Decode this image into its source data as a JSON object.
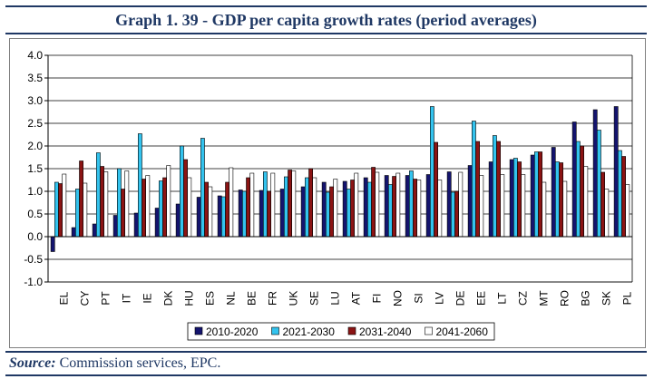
{
  "title": "Graph 1. 39 - GDP per capita growth rates (period averages)",
  "source": {
    "label": "Source:",
    "text": "Commission services, EPC."
  },
  "colors": {
    "2010-2020": "#14146e",
    "2021-2030": "#33c3ee",
    "2031-2040": "#8b1414",
    "2041-2060": "#ffffff"
  },
  "chart_data": {
    "type": "bar",
    "title": "",
    "xlabel": "",
    "ylabel": "",
    "ylim": [
      -1.0,
      4.0
    ],
    "yticks": [
      "4.0",
      "3.5",
      "3.0",
      "2.5",
      "2.0",
      "1.5",
      "1.0",
      "0.5",
      "0.0",
      "-0.5",
      "-1.0"
    ],
    "grid": true,
    "legend_position": "bottom",
    "categories": [
      "EL",
      "CY",
      "PT",
      "IT",
      "IE",
      "DK",
      "HU",
      "ES",
      "NL",
      "BE",
      "FR",
      "UK",
      "SE",
      "LU",
      "AT",
      "FI",
      "NO",
      "SI",
      "LV",
      "DE",
      "EE",
      "LT",
      "CZ",
      "MT",
      "RO",
      "BG",
      "SK",
      "PL"
    ],
    "series": [
      {
        "name": "2010-2020",
        "values": [
          -0.33,
          0.2,
          0.28,
          0.47,
          0.52,
          0.63,
          0.72,
          0.87,
          0.9,
          1.03,
          1.02,
          1.05,
          1.1,
          1.2,
          1.22,
          1.3,
          1.35,
          1.35,
          1.37,
          1.43,
          1.57,
          1.65,
          1.7,
          1.8,
          1.97,
          2.53,
          2.8,
          2.87
        ]
      },
      {
        "name": "2021-2030",
        "values": [
          1.2,
          1.05,
          1.85,
          1.5,
          2.27,
          1.23,
          2.0,
          2.17,
          0.88,
          1.0,
          1.43,
          1.32,
          1.3,
          0.98,
          1.05,
          1.2,
          1.15,
          1.45,
          2.87,
          0.98,
          2.55,
          2.23,
          1.73,
          1.87,
          1.65,
          2.1,
          2.35,
          1.9
        ]
      },
      {
        "name": "2031-2040",
        "values": [
          1.17,
          1.67,
          1.55,
          1.05,
          1.27,
          1.3,
          1.7,
          1.2,
          1.2,
          1.3,
          1.0,
          1.47,
          1.5,
          1.1,
          1.25,
          1.53,
          1.33,
          1.27,
          2.08,
          1.0,
          2.1,
          2.1,
          1.65,
          1.87,
          1.63,
          2.0,
          1.42,
          1.77
        ]
      },
      {
        "name": "2041-2060",
        "values": [
          1.38,
          1.18,
          1.43,
          1.45,
          1.35,
          1.57,
          1.3,
          1.1,
          1.52,
          1.4,
          1.4,
          1.45,
          1.3,
          1.27,
          1.4,
          1.42,
          1.4,
          1.25,
          1.25,
          1.42,
          1.35,
          1.37,
          1.37,
          1.2,
          1.22,
          1.55,
          1.05,
          1.15
        ]
      }
    ]
  }
}
